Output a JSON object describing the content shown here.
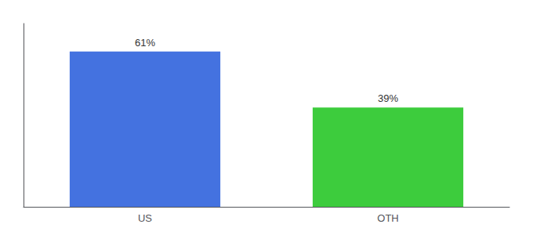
{
  "chart_data": {
    "type": "bar",
    "categories": [
      "US",
      "OTH"
    ],
    "values": [
      61,
      39
    ],
    "colors": [
      "#4472e0",
      "#3dcc3d"
    ],
    "ylim": [
      0,
      72
    ],
    "yticks": [],
    "grid": false,
    "data_labels": true,
    "value_labels": [
      "61%",
      "39%"
    ],
    "tick_labels": "x"
  }
}
